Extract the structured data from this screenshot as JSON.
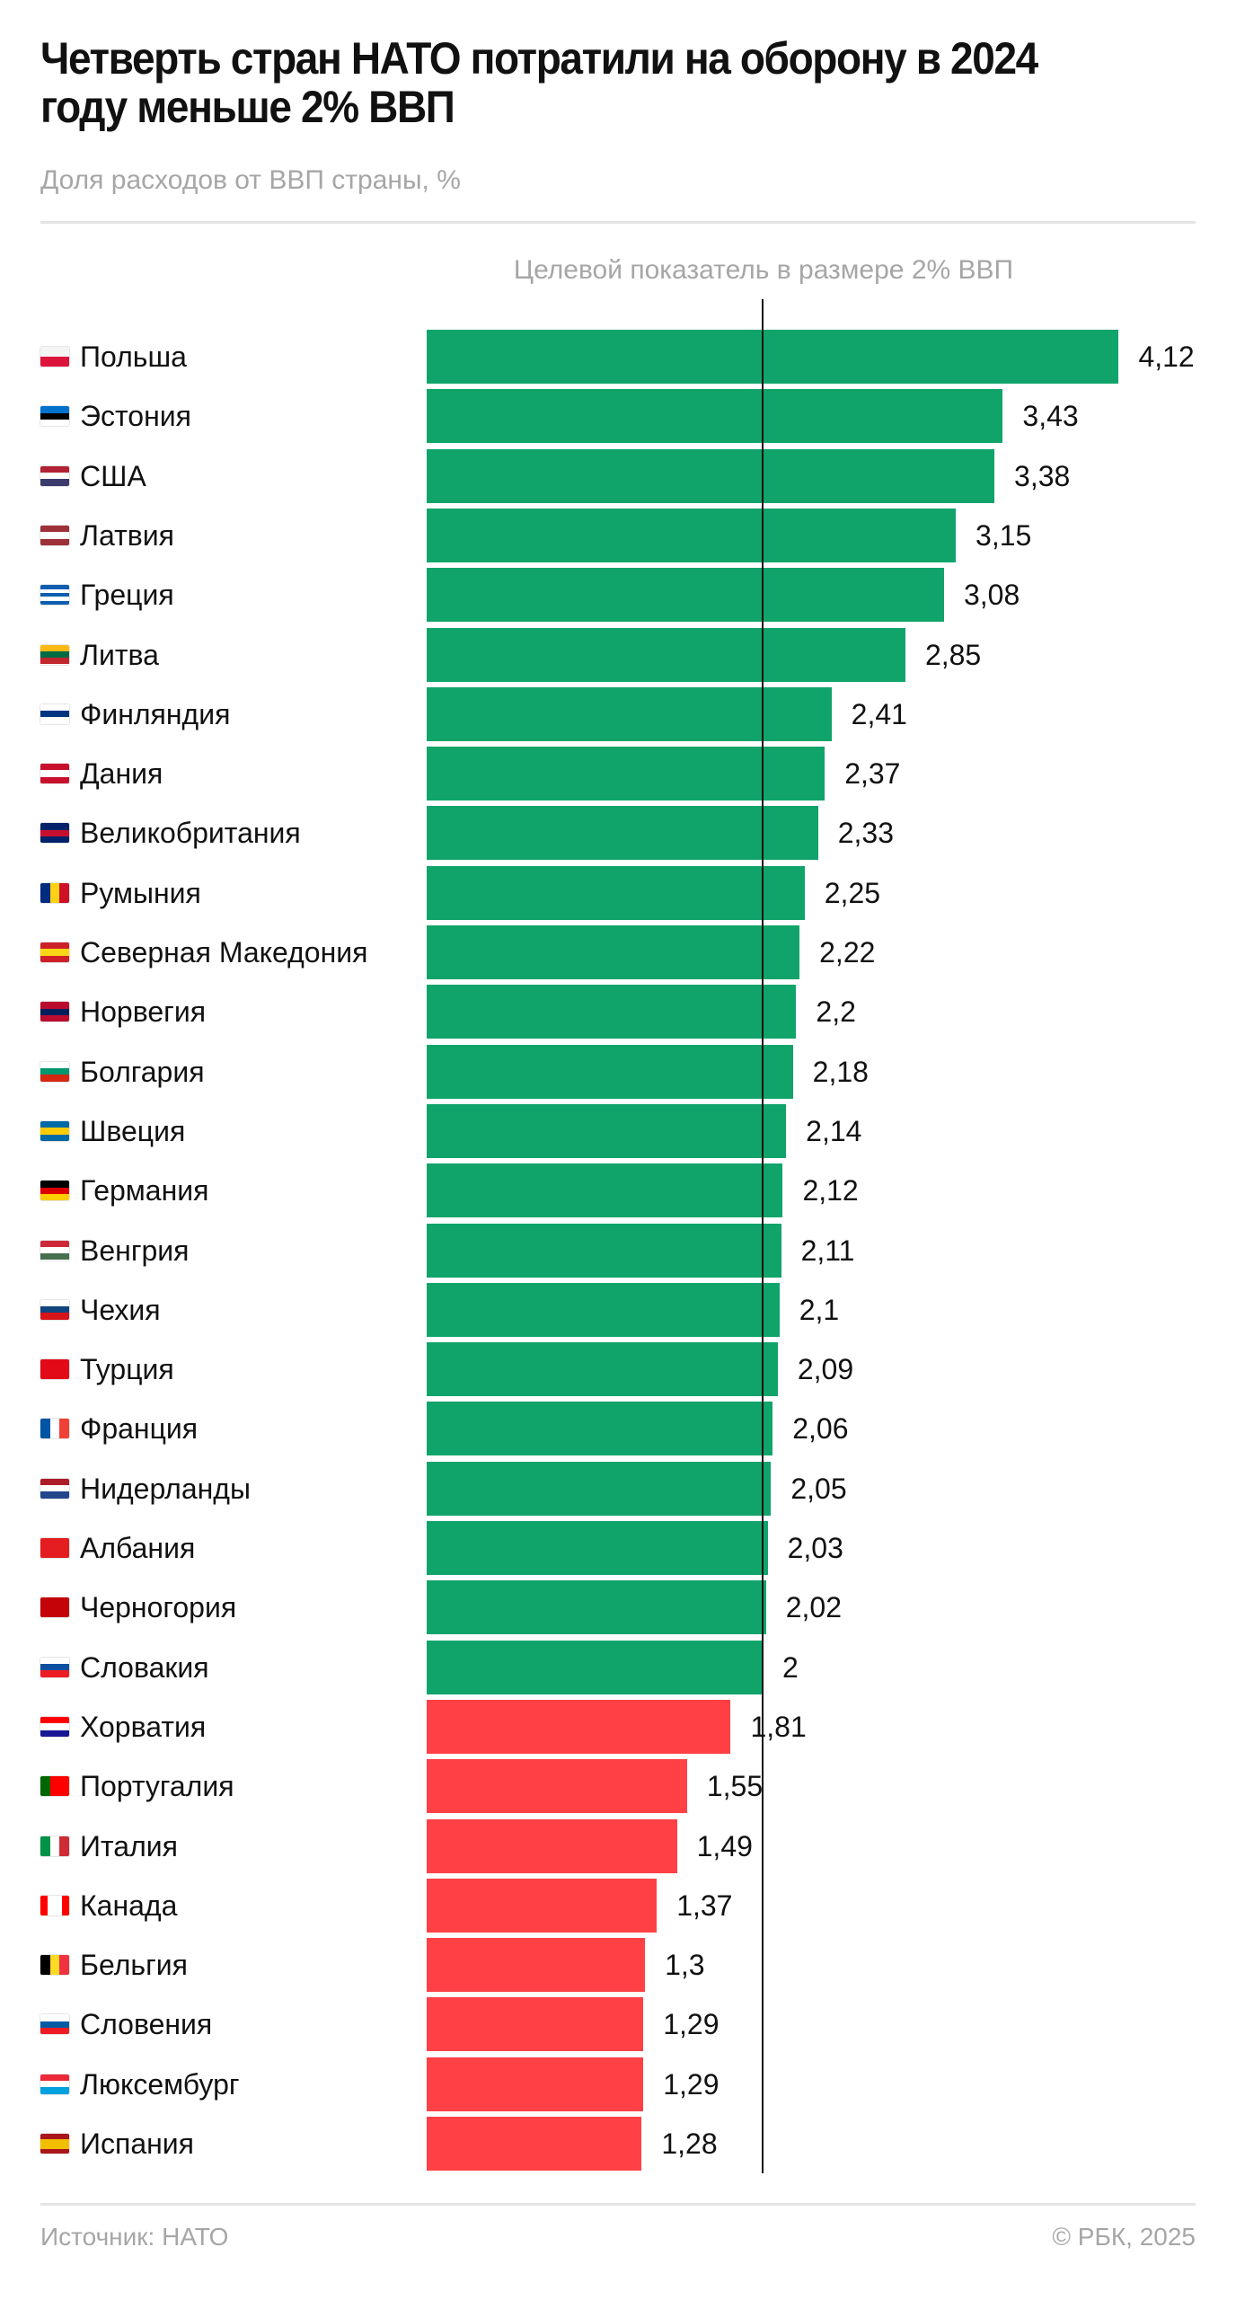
{
  "chart_data": {
    "type": "bar",
    "orientation": "horizontal",
    "title": "Четверть стран НАТО потратили на оборону в 2024 году меньше 2% ВВП",
    "subtitle": "Доля расходов от ВВП страны, %",
    "reference_line": {
      "value": 2,
      "label": "Целевой показатель в размере 2% ВВП"
    },
    "categories": [
      "Польша",
      "Эстония",
      "США",
      "Латвия",
      "Греция",
      "Литва",
      "Финляндия",
      "Дания",
      "Великобритания",
      "Румыния",
      "Северная Македония",
      "Норвегия",
      "Болгария",
      "Швеция",
      "Германия",
      "Венгрия",
      "Чехия",
      "Турция",
      "Франция",
      "Нидерланды",
      "Албания",
      "Черногория",
      "Словакия",
      "Хорватия",
      "Португалия",
      "Италия",
      "Канада",
      "Бельгия",
      "Словения",
      "Люксембург",
      "Испания"
    ],
    "values": [
      4.12,
      3.43,
      3.38,
      3.15,
      3.08,
      2.85,
      2.41,
      2.37,
      2.33,
      2.25,
      2.22,
      2.2,
      2.18,
      2.14,
      2.12,
      2.11,
      2.1,
      2.09,
      2.06,
      2.05,
      2.03,
      2.02,
      2,
      1.81,
      1.55,
      1.49,
      1.37,
      1.3,
      1.29,
      1.29,
      1.28
    ],
    "value_labels": [
      "4,12",
      "3,43",
      "3,38",
      "3,15",
      "3,08",
      "2,85",
      "2,41",
      "2,37",
      "2,33",
      "2,25",
      "2,22",
      "2,2",
      "2,18",
      "2,14",
      "2,12",
      "2,11",
      "2,1",
      "2,09",
      "2,06",
      "2,05",
      "2,03",
      "2,02",
      "2",
      "1,81",
      "1,55",
      "1,49",
      "1,37",
      "1,3",
      "1,29",
      "1,29",
      "1,28"
    ],
    "xlim": [
      0,
      4.12
    ],
    "grid": false,
    "colors": {
      "at_or_above_target": "#10a46b",
      "below_target": "#ff4044"
    }
  },
  "flags": [
    {
      "dir": "h",
      "c": [
        "#f4f4f4",
        "#dc143c"
      ]
    },
    {
      "dir": "h",
      "c": [
        "#0072ce",
        "#000000",
        "#ffffff"
      ]
    },
    {
      "dir": "h",
      "c": [
        "#b22234",
        "#ffffff",
        "#3c3b6e"
      ]
    },
    {
      "dir": "h",
      "c": [
        "#9e3039",
        "#ffffff",
        "#9e3039"
      ]
    },
    {
      "dir": "h",
      "c": [
        "#0d5eaf",
        "#ffffff",
        "#0d5eaf",
        "#ffffff",
        "#0d5eaf"
      ]
    },
    {
      "dir": "h",
      "c": [
        "#fdb913",
        "#006a44",
        "#c1272d"
      ]
    },
    {
      "dir": "h",
      "c": [
        "#ffffff",
        "#003580",
        "#ffffff"
      ]
    },
    {
      "dir": "h",
      "c": [
        "#c8102e",
        "#ffffff",
        "#c8102e"
      ]
    },
    {
      "dir": "h",
      "c": [
        "#012169",
        "#c8102e",
        "#012169"
      ]
    },
    {
      "dir": "v",
      "c": [
        "#002b7f",
        "#fcd116",
        "#ce1126"
      ]
    },
    {
      "dir": "h",
      "c": [
        "#ce2028",
        "#f9d616",
        "#ce2028"
      ]
    },
    {
      "dir": "h",
      "c": [
        "#ba0c2f",
        "#00205b",
        "#ba0c2f"
      ]
    },
    {
      "dir": "h",
      "c": [
        "#ffffff",
        "#00966e",
        "#d62612"
      ]
    },
    {
      "dir": "h",
      "c": [
        "#006aa7",
        "#fecc00",
        "#006aa7"
      ]
    },
    {
      "dir": "h",
      "c": [
        "#000000",
        "#dd0000",
        "#ffce00"
      ]
    },
    {
      "dir": "h",
      "c": [
        "#ce2939",
        "#ffffff",
        "#477050"
      ]
    },
    {
      "dir": "h",
      "c": [
        "#ffffff",
        "#11457e",
        "#d7141a"
      ]
    },
    {
      "dir": "h",
      "c": [
        "#e30a17"
      ]
    },
    {
      "dir": "v",
      "c": [
        "#0055a4",
        "#ffffff",
        "#ef4135"
      ]
    },
    {
      "dir": "h",
      "c": [
        "#ae1c28",
        "#ffffff",
        "#21468b"
      ]
    },
    {
      "dir": "h",
      "c": [
        "#e41e20"
      ]
    },
    {
      "dir": "h",
      "c": [
        "#c40308"
      ]
    },
    {
      "dir": "h",
      "c": [
        "#ffffff",
        "#0b4ea2",
        "#ee1c25"
      ]
    },
    {
      "dir": "h",
      "c": [
        "#ff0000",
        "#ffffff",
        "#171796"
      ]
    },
    {
      "dir": "v",
      "c": [
        "#006600",
        "#ff0000",
        "#ff0000"
      ]
    },
    {
      "dir": "v",
      "c": [
        "#009246",
        "#ffffff",
        "#ce2b37"
      ]
    },
    {
      "dir": "v",
      "c": [
        "#ff0000",
        "#ffffff",
        "#ffffff",
        "#ff0000"
      ]
    },
    {
      "dir": "v",
      "c": [
        "#000000",
        "#fdda24",
        "#ef3340"
      ]
    },
    {
      "dir": "h",
      "c": [
        "#ffffff",
        "#005da4",
        "#ed1c24"
      ]
    },
    {
      "dir": "h",
      "c": [
        "#ed2939",
        "#ffffff",
        "#00a1de"
      ]
    },
    {
      "dir": "h",
      "c": [
        "#aa151b",
        "#f1bf00",
        "#f1bf00",
        "#aa151b"
      ]
    }
  ],
  "footer": {
    "source": "Источник: НАТО",
    "copyright": "© РБК, 2025"
  }
}
